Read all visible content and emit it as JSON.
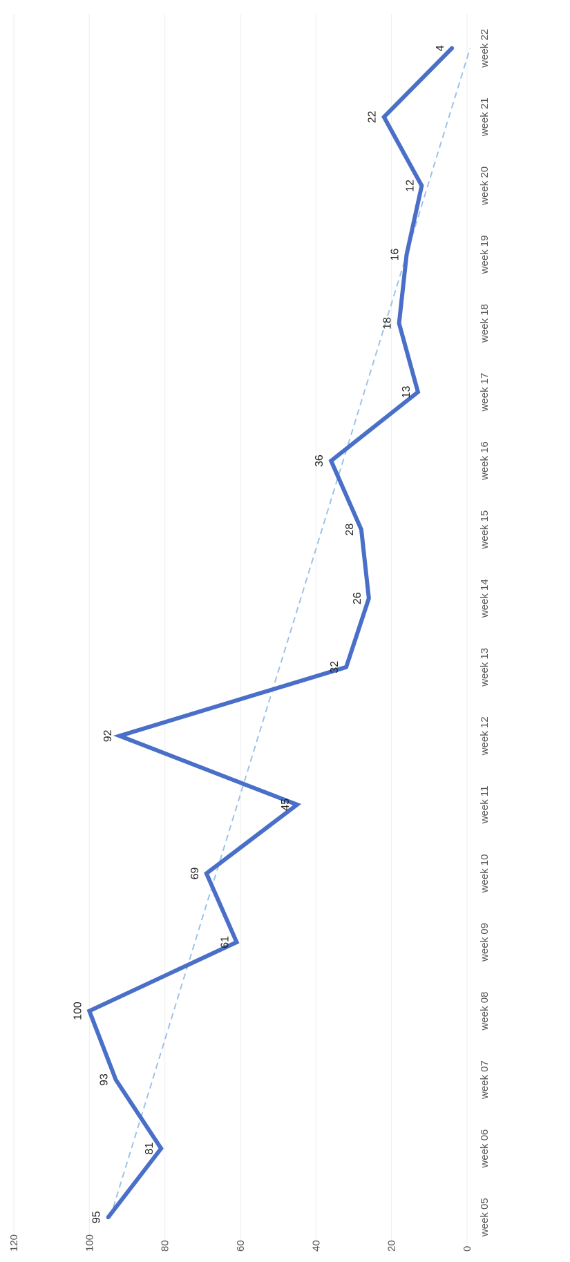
{
  "chart_data": {
    "type": "line",
    "orientation": "rotated 90 degrees counterclockwise (value axis runs along the bottom, categories run along the right side)",
    "title": "",
    "xlabel": "",
    "ylabel": "",
    "categories": [
      "week 05",
      "week 06",
      "week 07",
      "week 08",
      "week 09",
      "week 10",
      "week 11",
      "week 12",
      "week 13",
      "week 14",
      "week 15",
      "week 16",
      "week 17",
      "week 18",
      "week 19",
      "week 20",
      "week 21",
      "week 22"
    ],
    "series": [
      {
        "values": [
          95,
          81,
          93,
          100,
          61,
          69,
          45,
          92,
          32,
          26,
          28,
          36,
          13,
          18,
          16,
          12,
          22,
          4
        ],
        "color": "#4a6fc8"
      }
    ],
    "trendline": {
      "type": "linear",
      "style": "dashed",
      "color": "#9cc3ea"
    },
    "ylim": [
      0,
      120
    ],
    "yticks": [
      0,
      20,
      40,
      60,
      80,
      100,
      120
    ],
    "data_labels": [
      "95",
      "81",
      "93",
      "100",
      "61",
      "69",
      "45",
      "92",
      "32",
      "26",
      "28",
      "36",
      "13",
      "18",
      "16",
      "12",
      "22",
      "4"
    ],
    "grid": true,
    "legend": "none"
  }
}
